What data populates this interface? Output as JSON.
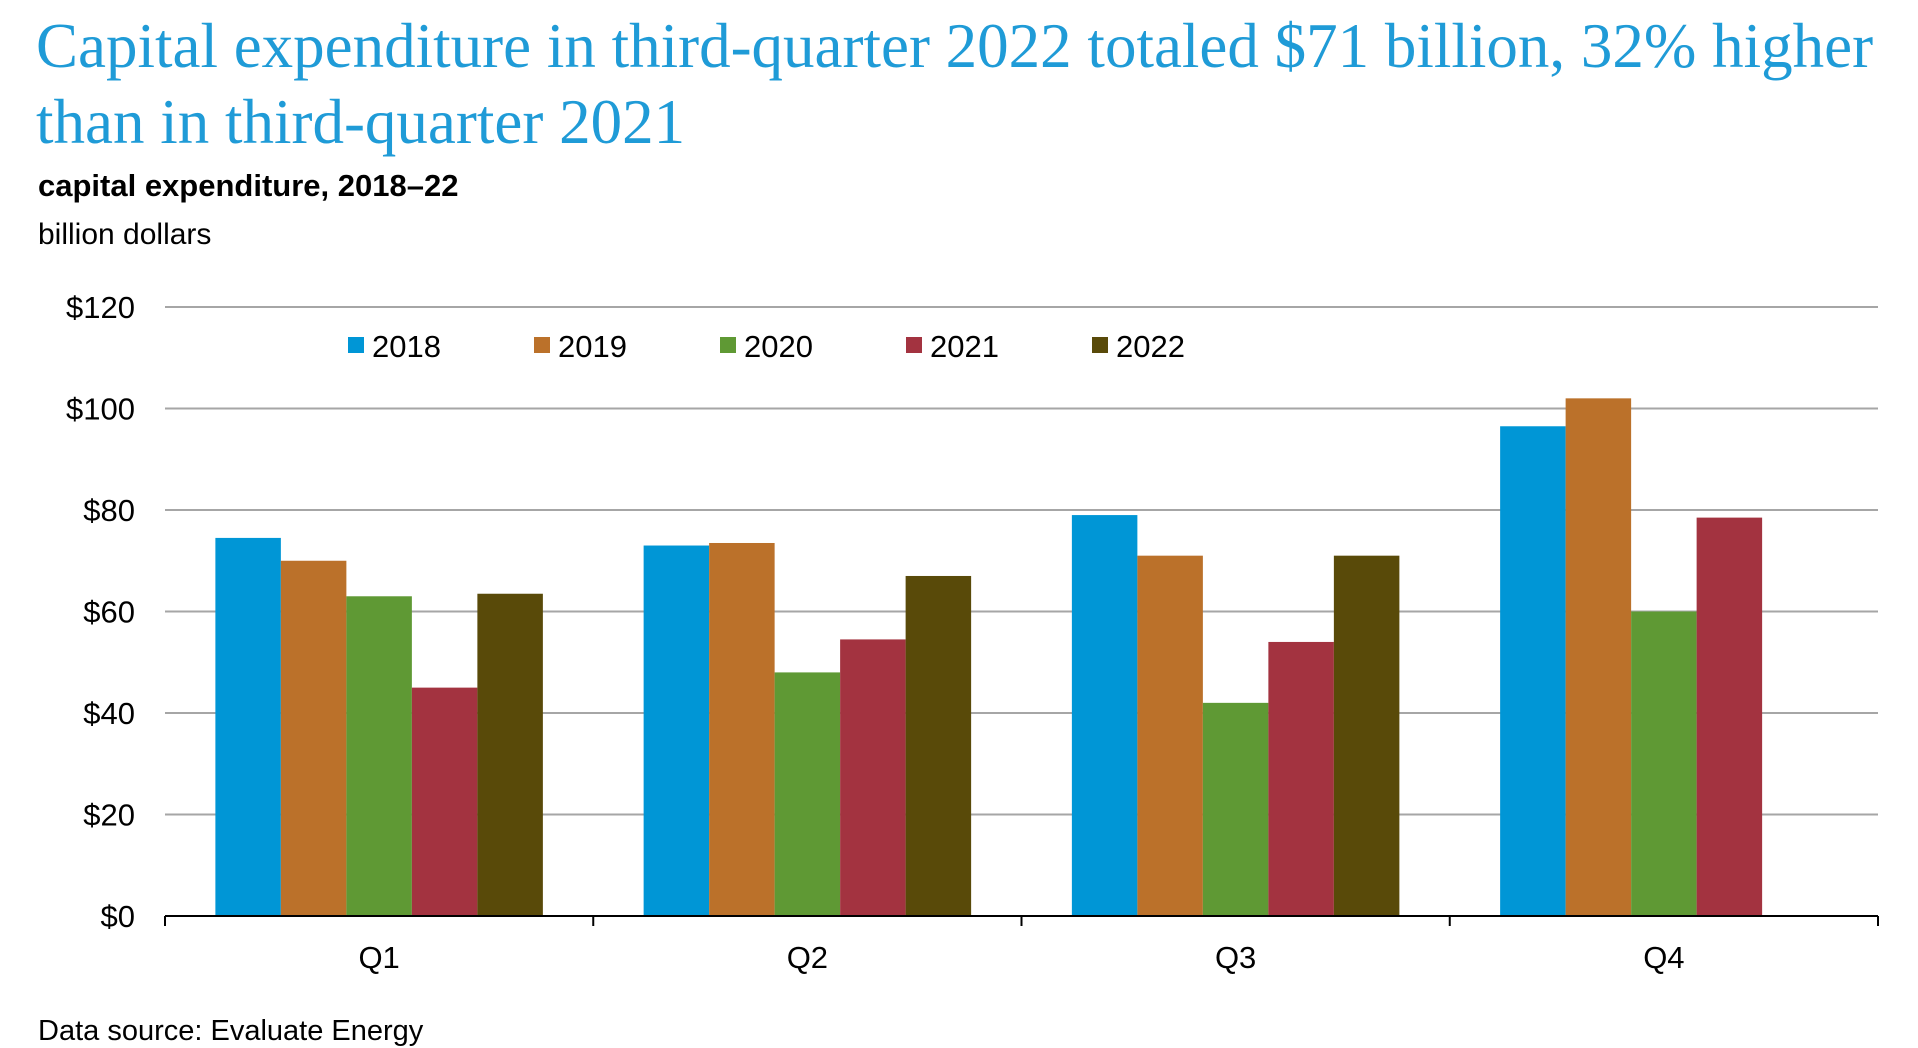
{
  "title": "Capital expenditure in third-quarter 2022 totaled $71 billion, 32% higher than in third-quarter 2021",
  "subtitle": "capital expenditure, 2018–22",
  "units": "billion dollars",
  "source": "Data source: Evaluate Energy",
  "chart_data": {
    "type": "bar",
    "categories": [
      "Q1",
      "Q2",
      "Q3",
      "Q4"
    ],
    "series": [
      {
        "name": "2018",
        "color": "#0096d6",
        "values": [
          74.5,
          73,
          79,
          96.5
        ]
      },
      {
        "name": "2019",
        "color": "#bb712a",
        "values": [
          70,
          73.5,
          71,
          102
        ]
      },
      {
        "name": "2020",
        "color": "#5f9934",
        "values": [
          63,
          48,
          42,
          60
        ]
      },
      {
        "name": "2021",
        "color": "#a33340",
        "values": [
          45,
          54.5,
          54,
          78.5
        ]
      },
      {
        "name": "2022",
        "color": "#594a09",
        "values": [
          63.5,
          67,
          71,
          null
        ]
      }
    ],
    "y_ticks": [
      "$0",
      "$20",
      "$40",
      "$60",
      "$80",
      "$100",
      "$120"
    ],
    "ylim": [
      0,
      120
    ],
    "grid": true,
    "legend_position": "top"
  }
}
